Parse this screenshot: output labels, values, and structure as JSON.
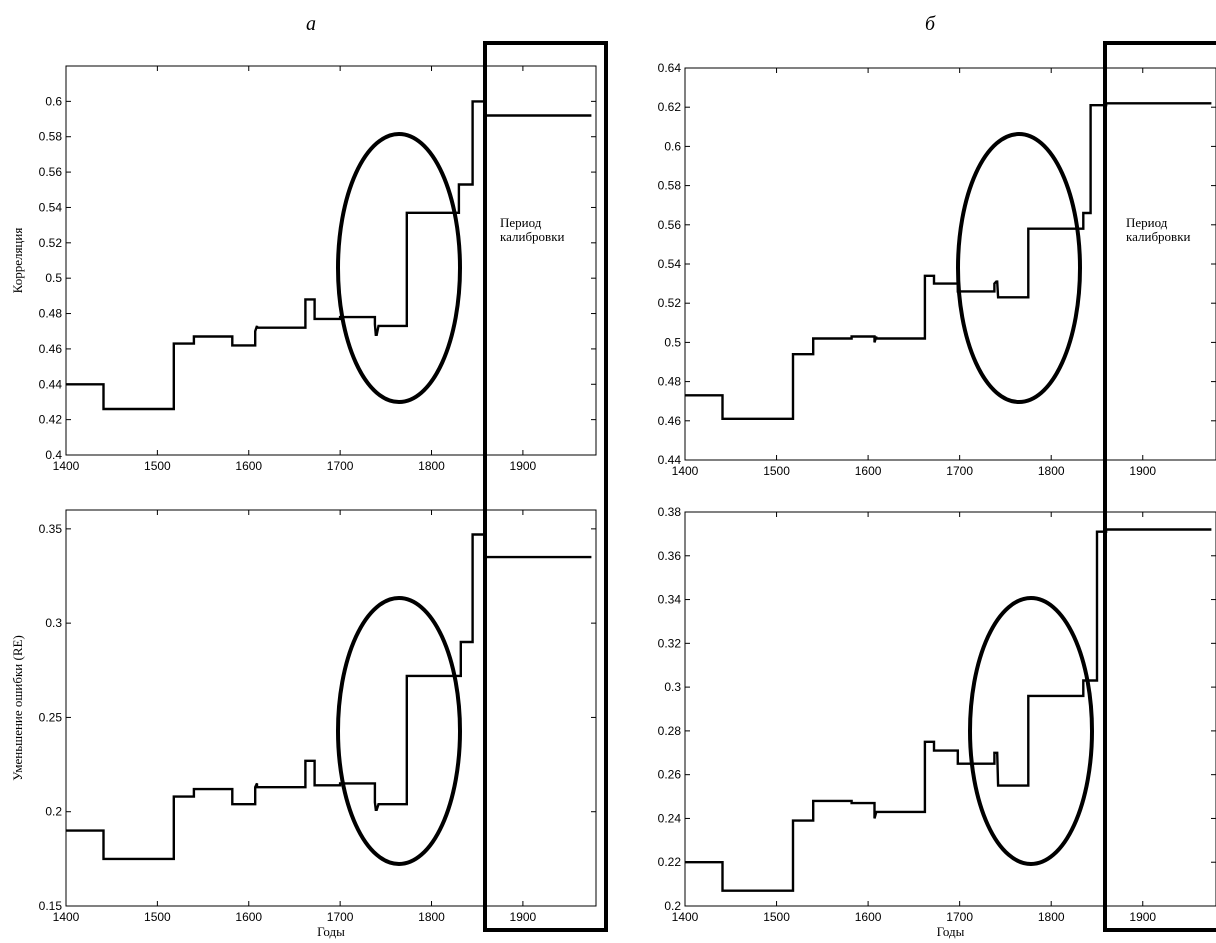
{
  "figure": {
    "panel_labels": [
      "а",
      "б"
    ],
    "calibration_label": [
      "Период",
      "калибровки"
    ],
    "xlabel": "Годы"
  },
  "chart_data": [
    {
      "id": "a-top",
      "type": "line",
      "panel": "а",
      "ylabel": "Корреляция",
      "xlabel": "",
      "xlim": [
        1400,
        1980
      ],
      "ylim": [
        0.4,
        0.62
      ],
      "xticks": [
        1400,
        1500,
        1600,
        1700,
        1800,
        1900
      ],
      "yticks": [
        0.4,
        0.42,
        0.44,
        0.46,
        0.48,
        0.5,
        0.52,
        0.54,
        0.56,
        0.58,
        0.6
      ],
      "ytick_labels": [
        "0.4",
        "0.42",
        "0.44",
        "0.46",
        "0.48",
        "0.5",
        "0.52",
        "0.54",
        "0.56",
        "0.58",
        "0.6"
      ],
      "x": [
        1400,
        1441,
        1441,
        1518,
        1518,
        1540,
        1540,
        1582,
        1582,
        1607,
        1607,
        1609,
        1609,
        1662,
        1662,
        1672,
        1672,
        1700,
        1700,
        1738,
        1738,
        1739,
        1740,
        1742,
        1742,
        1773,
        1773,
        1830,
        1830,
        1838,
        1838,
        1845,
        1845,
        1858,
        1858,
        1975
      ],
      "y": [
        0.44,
        0.44,
        0.426,
        0.426,
        0.463,
        0.463,
        0.467,
        0.467,
        0.462,
        0.462,
        0.47,
        0.473,
        0.472,
        0.472,
        0.488,
        0.488,
        0.477,
        0.477,
        0.478,
        0.478,
        0.474,
        0.468,
        0.468,
        0.473,
        0.473,
        0.473,
        0.537,
        0.537,
        0.553,
        0.553,
        0.553,
        0.553,
        0.6,
        0.6,
        0.592,
        0.592
      ]
    },
    {
      "id": "a-bottom",
      "type": "line",
      "panel": "а",
      "ylabel": "Уменьшение ошибки (RE)",
      "xlabel": "Годы",
      "xlim": [
        1400,
        1980
      ],
      "ylim": [
        0.15,
        0.36
      ],
      "xticks": [
        1400,
        1500,
        1600,
        1700,
        1800,
        1900
      ],
      "yticks": [
        0.15,
        0.2,
        0.25,
        0.3,
        0.35
      ],
      "ytick_labels": [
        "0.15",
        "0.2",
        "0.25",
        "0.3",
        "0.35"
      ],
      "x": [
        1400,
        1441,
        1441,
        1518,
        1518,
        1540,
        1540,
        1582,
        1582,
        1607,
        1607,
        1609,
        1609,
        1662,
        1662,
        1672,
        1672,
        1700,
        1700,
        1738,
        1738,
        1739,
        1740,
        1742,
        1742,
        1773,
        1773,
        1832,
        1832,
        1840,
        1840,
        1845,
        1845,
        1858,
        1858,
        1975
      ],
      "y": [
        0.19,
        0.19,
        0.175,
        0.175,
        0.208,
        0.208,
        0.212,
        0.212,
        0.204,
        0.204,
        0.213,
        0.215,
        0.213,
        0.213,
        0.227,
        0.227,
        0.214,
        0.214,
        0.215,
        0.215,
        0.205,
        0.201,
        0.201,
        0.204,
        0.204,
        0.204,
        0.272,
        0.272,
        0.29,
        0.29,
        0.29,
        0.29,
        0.347,
        0.347,
        0.335,
        0.335
      ]
    },
    {
      "id": "b-top",
      "type": "line",
      "panel": "б",
      "ylabel": "",
      "xlabel": "",
      "xlim": [
        1400,
        1980
      ],
      "ylim": [
        0.44,
        0.64
      ],
      "xticks": [
        1400,
        1500,
        1600,
        1700,
        1800,
        1900
      ],
      "yticks": [
        0.44,
        0.46,
        0.48,
        0.5,
        0.52,
        0.54,
        0.56,
        0.58,
        0.6,
        0.62,
        0.64
      ],
      "ytick_labels": [
        "0.44",
        "0.46",
        "0.48",
        "0.5",
        "0.52",
        "0.54",
        "0.56",
        "0.58",
        "0.6",
        "0.62",
        "0.64"
      ],
      "x": [
        1400,
        1441,
        1441,
        1518,
        1518,
        1540,
        1540,
        1582,
        1582,
        1607,
        1607,
        1609,
        1609,
        1662,
        1662,
        1672,
        1672,
        1698,
        1698,
        1738,
        1738,
        1740,
        1741,
        1742,
        1742,
        1775,
        1775,
        1835,
        1835,
        1843,
        1843,
        1860,
        1860,
        1975
      ],
      "y": [
        0.473,
        0.473,
        0.461,
        0.461,
        0.494,
        0.494,
        0.502,
        0.502,
        0.503,
        0.503,
        0.5,
        0.503,
        0.502,
        0.502,
        0.534,
        0.534,
        0.53,
        0.53,
        0.526,
        0.526,
        0.53,
        0.531,
        0.531,
        0.523,
        0.523,
        0.523,
        0.558,
        0.558,
        0.566,
        0.566,
        0.621,
        0.621,
        0.622,
        0.622
      ]
    },
    {
      "id": "b-bottom",
      "type": "line",
      "panel": "б",
      "ylabel": "",
      "xlabel": "Годы",
      "xlim": [
        1400,
        1980
      ],
      "ylim": [
        0.2,
        0.38
      ],
      "xticks": [
        1400,
        1500,
        1600,
        1700,
        1800,
        1900
      ],
      "yticks": [
        0.2,
        0.22,
        0.24,
        0.26,
        0.28,
        0.3,
        0.32,
        0.34,
        0.36,
        0.38
      ],
      "ytick_labels": [
        "0.2",
        "0.22",
        "0.24",
        "0.26",
        "0.28",
        "0.3",
        "0.32",
        "0.34",
        "0.36",
        "0.38"
      ],
      "x": [
        1400,
        1441,
        1441,
        1518,
        1518,
        1540,
        1540,
        1582,
        1582,
        1607,
        1607,
        1609,
        1609,
        1662,
        1662,
        1672,
        1672,
        1698,
        1698,
        1738,
        1738,
        1740,
        1741,
        1742,
        1742,
        1775,
        1775,
        1835,
        1835,
        1843,
        1843,
        1850,
        1850,
        1860,
        1860,
        1975
      ],
      "y": [
        0.22,
        0.22,
        0.207,
        0.207,
        0.239,
        0.239,
        0.248,
        0.248,
        0.247,
        0.247,
        0.24,
        0.243,
        0.243,
        0.243,
        0.275,
        0.275,
        0.271,
        0.271,
        0.265,
        0.265,
        0.27,
        0.27,
        0.27,
        0.255,
        0.255,
        0.255,
        0.296,
        0.296,
        0.303,
        0.303,
        0.303,
        0.303,
        0.371,
        0.371,
        0.372,
        0.372
      ]
    }
  ]
}
